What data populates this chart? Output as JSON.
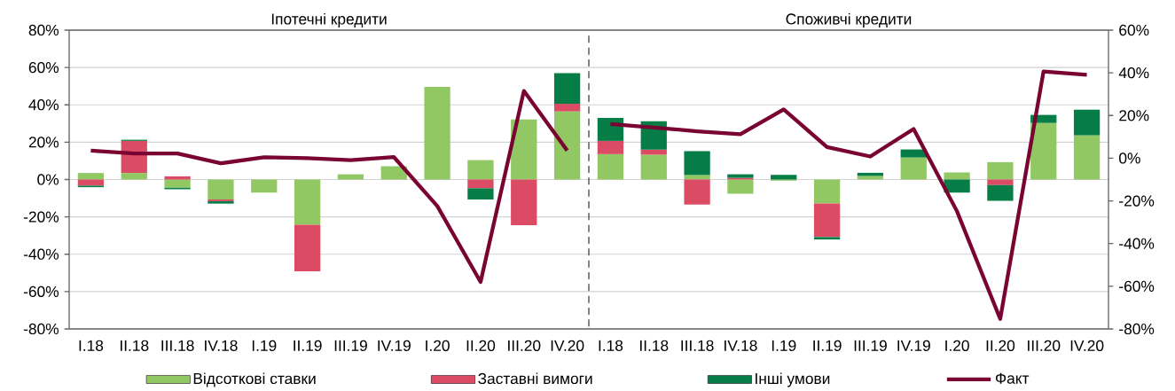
{
  "chart_data": {
    "type": "bar",
    "stacked": true,
    "categories": [
      "I.18",
      "II.18",
      "III.18",
      "IV.18",
      "I.19",
      "II.19",
      "III.19",
      "IV.19",
      "I.20",
      "II.20",
      "III.20",
      "IV.20",
      "I.18",
      "II.18",
      "III.18",
      "IV.18",
      "I.19",
      "II.19",
      "III.19",
      "IV.19",
      "I.20",
      "II.20",
      "III.20",
      "IV.20"
    ],
    "series": [
      {
        "name": "Відсоткові ставки",
        "color": "#92c864",
        "values": [
          3.5,
          3.5,
          -4.4,
          -10.7,
          -7.0,
          -24.2,
          2.8,
          7.1,
          49.6,
          10.4,
          32.1,
          36.5,
          13.6,
          13.3,
          2.4,
          -7.6,
          -0.6,
          -12.8,
          1.9,
          11.8,
          3.8,
          9.3,
          30.3,
          23.7
        ]
      },
      {
        "name": "Заставні вимоги",
        "color": "#dc4b64",
        "values": [
          -3.3,
          17.2,
          1.7,
          -0.9,
          null,
          -25.0,
          null,
          null,
          null,
          -4.7,
          -24.5,
          4.1,
          7.1,
          2.7,
          -13.4,
          0.9,
          null,
          -18.0,
          null,
          null,
          null,
          -3.0,
          null,
          null
        ]
      },
      {
        "name": "Інші умови",
        "color": "#067d46",
        "values": [
          -0.8,
          0.6,
          -0.8,
          -1.3,
          null,
          null,
          null,
          null,
          null,
          -6.0,
          null,
          16.4,
          12.3,
          15.2,
          12.8,
          1.9,
          2.5,
          -1.3,
          1.7,
          4.3,
          -7.0,
          -8.4,
          4.3,
          13.7
        ]
      },
      {
        "name": "Факт",
        "type": "line",
        "axis": "y2",
        "color": "#7a0431",
        "values": [
          3.6,
          2.2,
          2.2,
          -2.4,
          0.4,
          0.0,
          -0.9,
          0.5,
          -22.4,
          -58.0,
          31.5,
          3.6,
          null,
          null,
          null,
          null,
          null,
          null,
          null,
          null,
          null,
          null,
          null,
          null
        ]
      },
      {
        "type": "line",
        "axis": "y2",
        "color": "#7a0431",
        "values": [
          null,
          null,
          null,
          null,
          null,
          null,
          null,
          null,
          null,
          null,
          null,
          null,
          16.0,
          14.4,
          12.6,
          11.2,
          22.9,
          5.2,
          0.8,
          13.7,
          -24.8,
          -75.3,
          40.6,
          39.1
        ]
      }
    ],
    "ylim": [
      -80,
      80
    ],
    "yticks": [
      {
        "value": -80,
        "label": "-80%"
      },
      {
        "value": -60,
        "label": "-60%"
      },
      {
        "value": -40,
        "label": "-40%"
      },
      {
        "value": -20,
        "label": "-20%"
      },
      {
        "value": 0,
        "label": "0%"
      },
      {
        "value": 20,
        "label": "20%"
      },
      {
        "value": 40,
        "label": "40%"
      },
      {
        "value": 60,
        "label": "60%"
      },
      {
        "value": 80,
        "label": "80%"
      }
    ],
    "y2lim": [
      -80,
      60
    ],
    "y2ticks": [
      {
        "value": -80,
        "label": "-80%"
      },
      {
        "value": -60,
        "label": "-60%"
      },
      {
        "value": -40,
        "label": "-40%"
      },
      {
        "value": -20,
        "label": "-20%"
      },
      {
        "value": 0,
        "label": "0%"
      },
      {
        "value": 20,
        "label": "20%"
      },
      {
        "value": 40,
        "label": "40%"
      },
      {
        "value": 60,
        "label": "60%"
      }
    ],
    "grid": "y",
    "legend": "bottom",
    "annotations": [
      "Іпотечні кредити",
      "Споживчі кредити"
    ]
  }
}
